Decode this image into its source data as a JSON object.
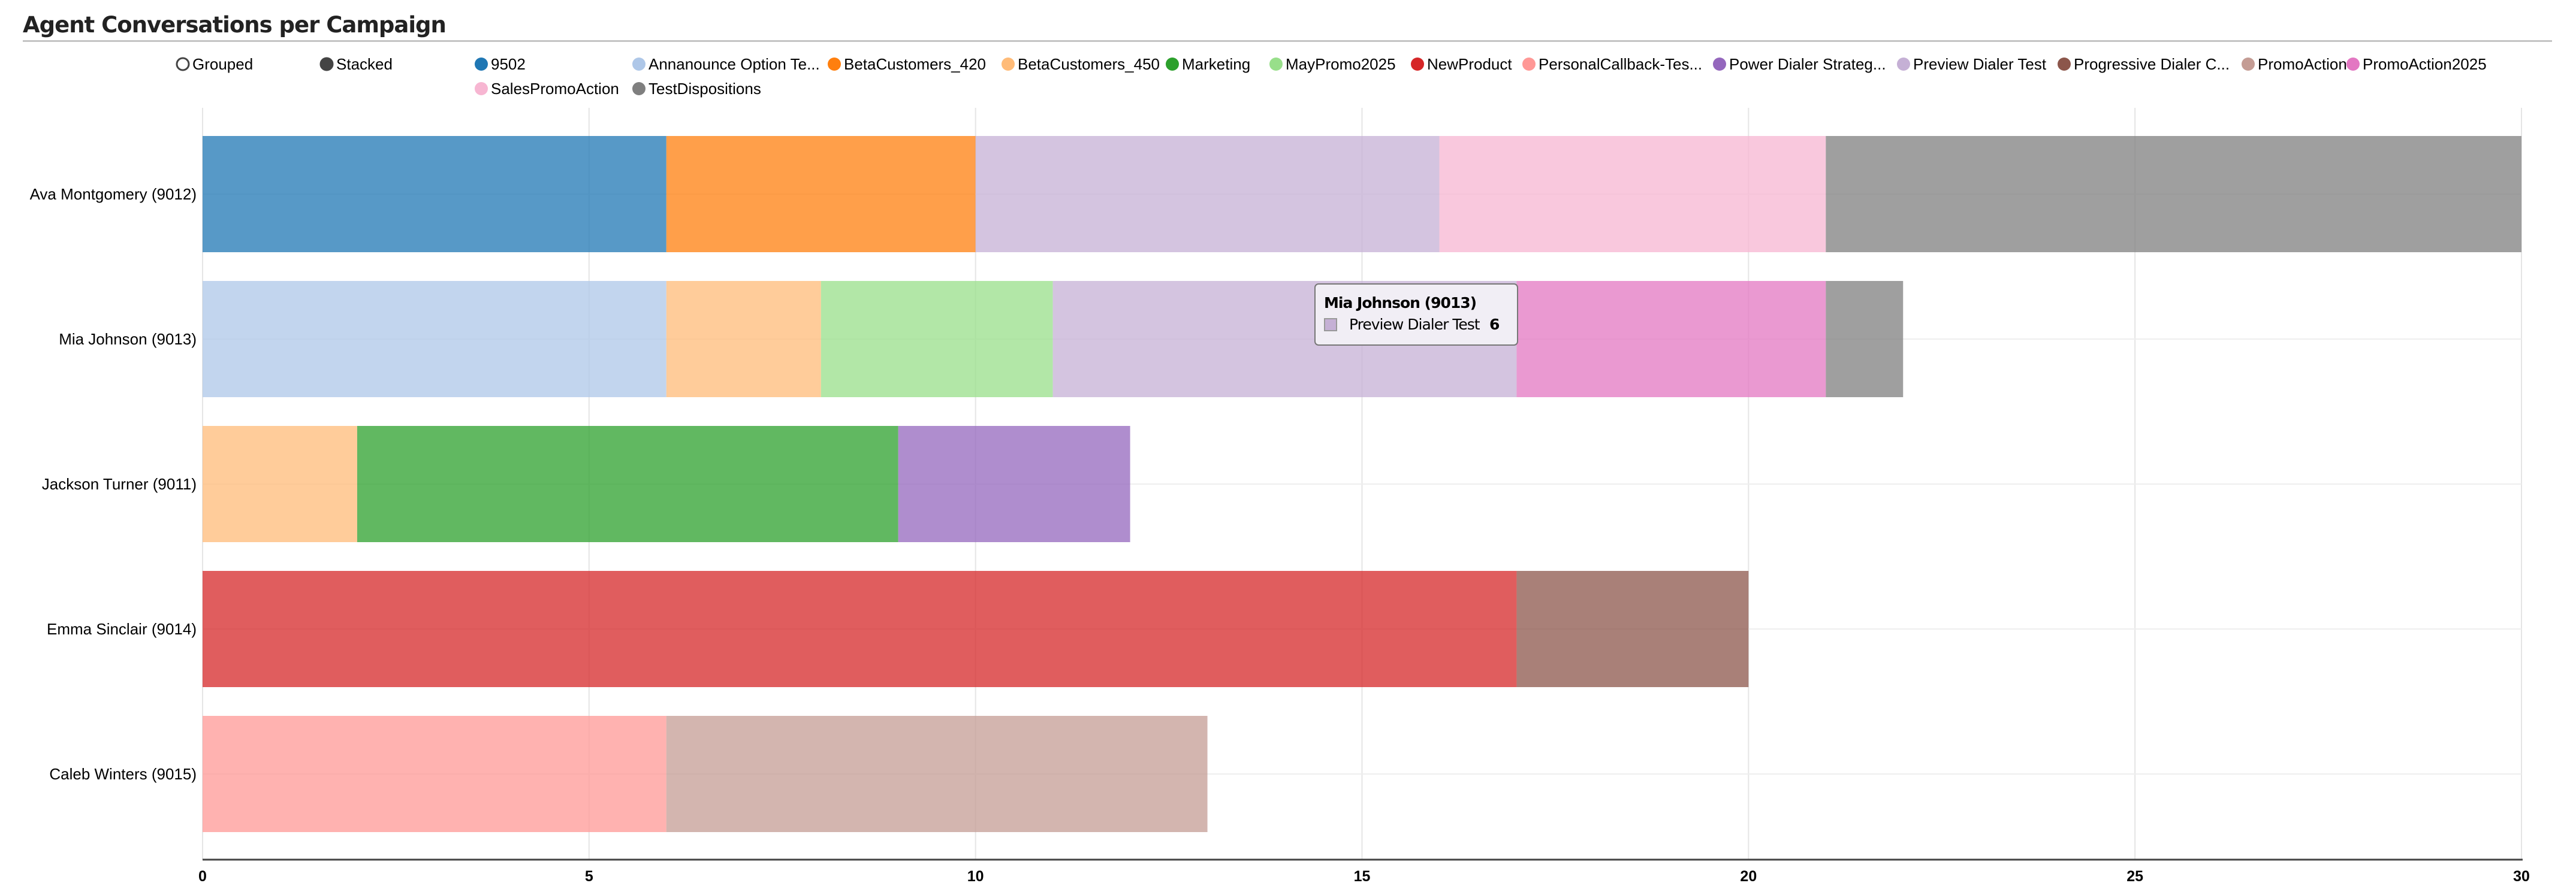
{
  "chart_data": {
    "type": "bar",
    "orientation": "horizontal",
    "stacked": true,
    "title": "Agent Conversations per Campaign",
    "controls": {
      "options": [
        "Grouped",
        "Stacked"
      ],
      "selected": "Stacked"
    },
    "categories": [
      "Ava Montgomery (9012)",
      "Mia Johnson (9013)",
      "Jackson Turner (9011)",
      "Emma Sinclair (9014)",
      "Caleb Winters (9015)"
    ],
    "xlim": [
      0,
      30
    ],
    "xticks": [
      "0",
      "5",
      "10",
      "15",
      "20",
      "25",
      "30"
    ],
    "grid": true,
    "legend_position": "top",
    "series": [
      {
        "name": "9502",
        "color": "#1f77b4",
        "values": [
          6,
          0,
          0,
          0,
          0
        ]
      },
      {
        "name": "Annanounce Option Te...",
        "color": "#aec7e8",
        "values": [
          0,
          6,
          0,
          0,
          0
        ]
      },
      {
        "name": "BetaCustomers_420",
        "color": "#ff7f0e",
        "values": [
          4,
          0,
          0,
          0,
          0
        ]
      },
      {
        "name": "BetaCustomers_450",
        "color": "#ffbb78",
        "values": [
          0,
          2,
          2,
          0,
          0
        ]
      },
      {
        "name": "Marketing",
        "color": "#2ca02c",
        "values": [
          0,
          0,
          7,
          0,
          0
        ]
      },
      {
        "name": "MayPromo2025",
        "color": "#98df8a",
        "values": [
          0,
          3,
          0,
          0,
          0
        ]
      },
      {
        "name": "NewProduct",
        "color": "#d62728",
        "values": [
          0,
          0,
          0,
          17,
          0
        ]
      },
      {
        "name": "PersonalCallback-Tes...",
        "color": "#ff9896",
        "values": [
          0,
          0,
          0,
          0,
          6
        ]
      },
      {
        "name": "Power Dialer Strateg...",
        "color": "#9467bd",
        "values": [
          0,
          0,
          3,
          0,
          0
        ]
      },
      {
        "name": "Preview Dialer Test",
        "color": "#c5b0d5",
        "values": [
          6,
          6,
          0,
          0,
          0
        ]
      },
      {
        "name": "Progressive Dialer C...",
        "color": "#8c564b",
        "values": [
          0,
          0,
          0,
          3,
          0
        ]
      },
      {
        "name": "PromoAction",
        "color": "#c49c94",
        "values": [
          0,
          0,
          0,
          0,
          7
        ]
      },
      {
        "name": "PromoAction2025",
        "color": "#e377c2",
        "values": [
          0,
          4,
          0,
          0,
          0
        ]
      },
      {
        "name": "SalesPromoAction",
        "color": "#f7b6d2",
        "values": [
          5,
          0,
          0,
          0,
          0
        ]
      },
      {
        "name": "TestDispositions",
        "color": "#7f7f7f",
        "values": [
          9,
          1,
          0,
          0,
          0
        ]
      }
    ]
  },
  "tooltip": {
    "title": "Mia Johnson (9013)",
    "series": "Preview Dialer Test",
    "value": "6",
    "color": "#c5b0d5"
  }
}
